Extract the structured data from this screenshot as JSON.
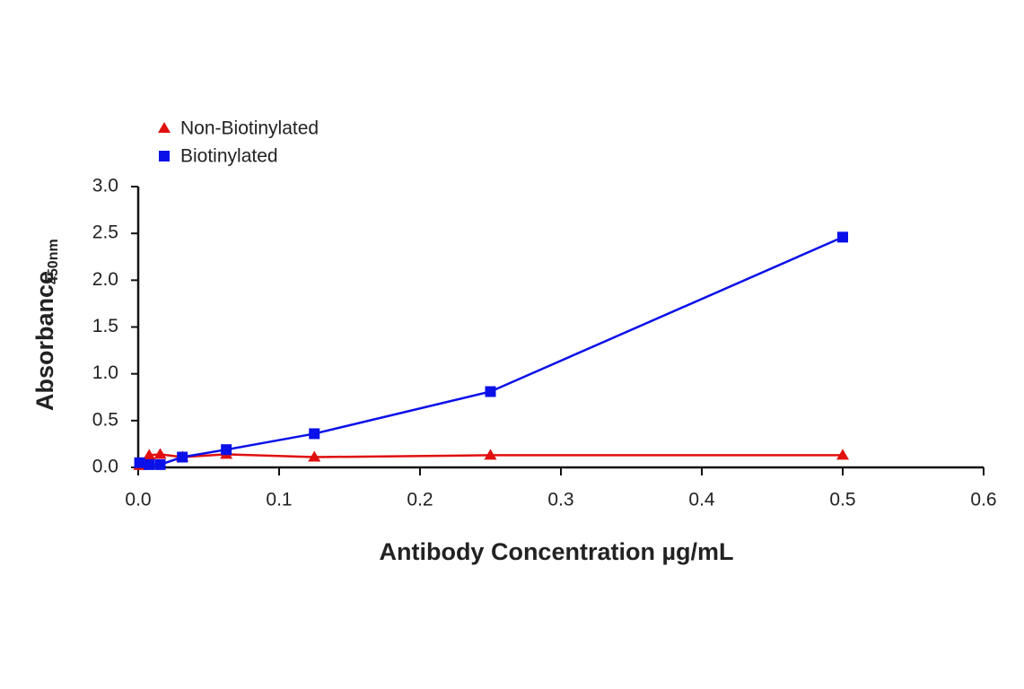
{
  "chart_data": {
    "type": "line",
    "x_label": "Antibody Concentration µg/mL",
    "y_label": "Absorbance",
    "y_label_subscript": "450nm",
    "xlim": [
      0,
      0.6
    ],
    "xticks": [
      {
        "value": 0,
        "label": "0.0"
      },
      0.1,
      0.2,
      0.3,
      0.4,
      0.5,
      0.6
    ],
    "ylim": [
      0,
      3
    ],
    "yticks": [
      {
        "value": 0,
        "label": "0.0"
      },
      0.5,
      {
        "value": 1,
        "label": "1.0"
      },
      1.5,
      {
        "value": 2,
        "label": "2.0"
      },
      2.5,
      {
        "value": 3,
        "label": "3.0"
      }
    ],
    "grid": false,
    "legend": "top-left",
    "series": [
      {
        "name": "Non-Biotinylated",
        "color": "#e0100f",
        "marker": "triangle",
        "x": [
          0.001,
          0.0078,
          0.0156,
          0.0313,
          0.0625,
          0.125,
          0.25,
          0.5
        ],
        "values": [
          0.02,
          0.13,
          0.14,
          0.11,
          0.14,
          0.11,
          0.13,
          0.13
        ]
      },
      {
        "name": "Biotinylated",
        "color": "#0a10e8",
        "marker": "square",
        "x": [
          0.001,
          0.0078,
          0.0156,
          0.0313,
          0.0625,
          0.125,
          0.25,
          0.5
        ],
        "values": [
          0.05,
          0.03,
          0.03,
          0.11,
          0.19,
          0.36,
          0.81,
          2.46
        ]
      }
    ]
  }
}
